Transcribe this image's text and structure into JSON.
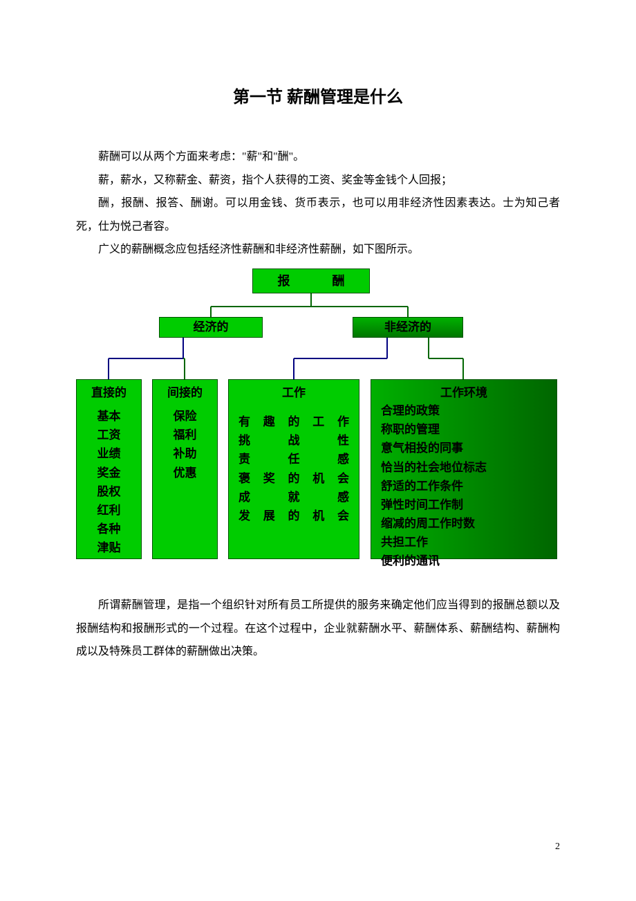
{
  "title": "第一节   薪酬管理是什么",
  "paragraphs_top": [
    "薪酬可以从两个方面来考虑：\"薪\"和\"酬\"。",
    "薪，薪水，又称薪金、薪资，指个人获得的工资、奖金等金钱个人回报；",
    "酬，报酬、报答、酬谢。可以用金钱、货币表示，也可以用非经济性因素表达。士为知己者死，仕为悦己者容。",
    "广义的薪酬概念应包括经济性薪酬和非经济性薪酬，如下图所示。"
  ],
  "paragraphs_bottom": [
    "所谓薪酬管理，是指一个组织针对所有员工所提供的服务来确定他们应当得到的报酬总额以及报酬结构和报酬形式的一个过程。在这个过程中，企业就薪酬水平、薪酬体系、薪酬结构、薪酬构成以及特殊员工群体的薪酬做出决策。"
  ],
  "diagram": {
    "type": "tree",
    "background_color": "#ffffff",
    "box_fill": "#00cc00",
    "box_fill_dark_start": "#00b000",
    "box_fill_dark_end": "#006600",
    "box_border": "#005000",
    "connector_colors": {
      "blue": "#000080",
      "green": "#006600"
    },
    "font_family": "SimHei",
    "font_weight": "bold",
    "root": {
      "label": "报   酬"
    },
    "level2": {
      "econ": {
        "label": "经济的"
      },
      "nonecon": {
        "label": "非经济的"
      }
    },
    "leaves": {
      "direct": {
        "title": "直接的",
        "items": [
          "基本",
          "工资",
          "业绩",
          "奖金",
          "股权",
          "红利",
          "各种",
          "津贴"
        ]
      },
      "indirect": {
        "title": "间接的",
        "items": [
          "保险",
          "福利",
          "补助",
          "优惠"
        ]
      },
      "work": {
        "title": "工作",
        "items": [
          "有趣的工作",
          "挑战性",
          "责任感",
          "褒奖的机会",
          "成就感",
          "发展的机会"
        ]
      },
      "env": {
        "title": "工作环境",
        "items": [
          "合理的政策",
          "称职的管理",
          "意气相投的同事",
          "恰当的社会地位标志",
          "舒适的工作条件",
          "弹性时间工作制",
          "缩减的周工作时数",
          "共担工作",
          "便利的通讯"
        ]
      }
    }
  },
  "page_number": "2"
}
